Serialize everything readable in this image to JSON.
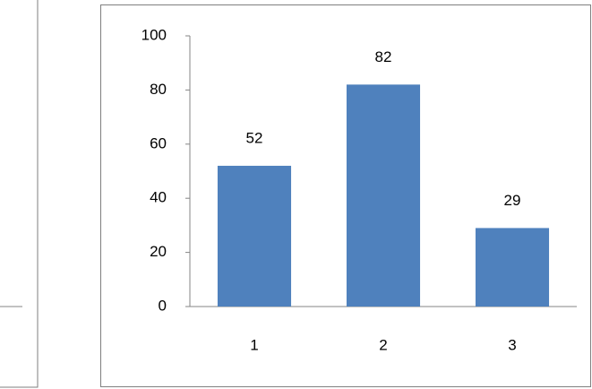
{
  "chart_data": {
    "type": "bar",
    "categories": [
      "1",
      "2",
      "3"
    ],
    "values": [
      52,
      82,
      29
    ],
    "color": "#4f81bd",
    "ylim": [
      0,
      100
    ],
    "yticks": [
      0,
      20,
      40,
      60,
      80,
      100
    ],
    "grid": false,
    "data_labels": true
  }
}
